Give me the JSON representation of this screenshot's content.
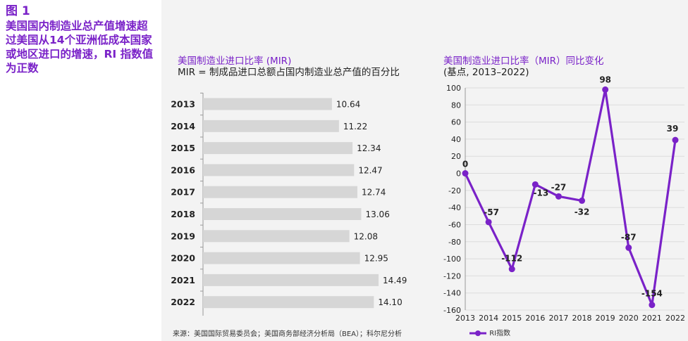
{
  "figure": {
    "label": "图 1",
    "title": "美国国内制造业总产值增速超过美国从14个亚洲低成本国家或地区进口的增速，RI 指数值为正数"
  },
  "source": "来源：美国国际贸易委员会；美国商务部经济分析局（BEA）；科尔尼分析",
  "colors": {
    "accent": "#7a22c8",
    "bar": "#d6d6d6",
    "panel_bg": "#f3f3f3"
  },
  "chart_data": [
    {
      "type": "bar",
      "orientation": "horizontal",
      "title": "美国制造业进口比率 (MIR)",
      "subtitle": "MIR = 制成品进口总额占国内制造业总产值的百分比",
      "categories": [
        "2013",
        "2014",
        "2015",
        "2016",
        "2017",
        "2018",
        "2019",
        "2020",
        "2021",
        "2022"
      ],
      "values": [
        10.64,
        11.22,
        12.34,
        12.47,
        12.74,
        13.06,
        12.08,
        12.95,
        14.49,
        14.1
      ],
      "value_labels": [
        "10.64",
        "11.22",
        "12.34",
        "12.47",
        "12.74",
        "13.06",
        "12.08",
        "12.95",
        "14.49",
        "14.10"
      ],
      "xlim": [
        0,
        16
      ],
      "grid": false
    },
    {
      "type": "line",
      "title": "美国制造业进口比率（MIR）同比变化",
      "subtitle": "(基点, 2013–2022)",
      "x": [
        "2013",
        "2014",
        "2015",
        "2016",
        "2017",
        "2018",
        "2019",
        "2020",
        "2021",
        "2022"
      ],
      "series": [
        {
          "name": "RI指数",
          "values": [
            0,
            -57,
            -112,
            -13,
            -27,
            -32,
            98,
            -87,
            -154,
            39
          ]
        }
      ],
      "ylim": [
        -160,
        100
      ],
      "yticks": [
        100,
        80,
        60,
        40,
        20,
        0,
        -20,
        -40,
        -60,
        -80,
        -100,
        -120,
        -140,
        -160
      ],
      "grid": true,
      "legend": "bottom"
    }
  ]
}
